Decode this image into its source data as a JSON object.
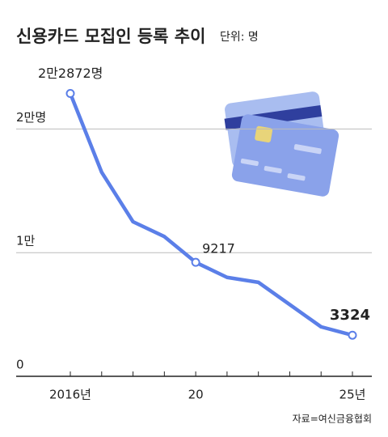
{
  "chart_data": {
    "type": "line",
    "title": "신용카드 모집인 등록 추이",
    "subtitle": "단위: 명",
    "source": "자료=여신금융협회",
    "categories": [
      "2016년",
      null,
      null,
      null,
      "20",
      null,
      null,
      null,
      null,
      "25년"
    ],
    "series": [
      {
        "color": "#5b7fe8",
        "values": [
          22872,
          16500,
          12500,
          11300,
          9217,
          8000,
          7600,
          5800,
          4000,
          3324
        ],
        "value_labels": [
          "2만2872명",
          null,
          null,
          null,
          "9217",
          null,
          null,
          null,
          null,
          "3324"
        ]
      }
    ],
    "ylim": [
      0,
      25000
    ],
    "yticks": [
      0,
      {
        "value": 10000,
        "label": "1만"
      },
      {
        "value": 20000,
        "label": "2만명"
      }
    ],
    "grid": true
  }
}
